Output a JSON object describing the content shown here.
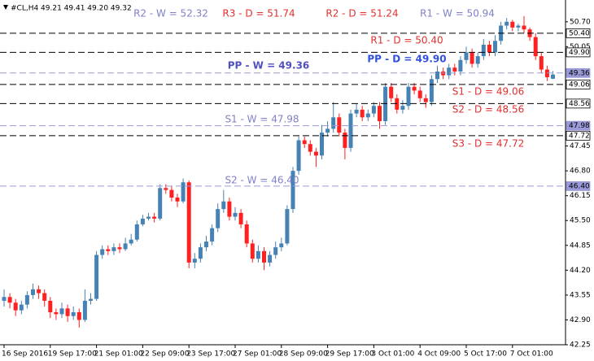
{
  "chart_data": {
    "type": "candlestick",
    "header": "#CL,H4  49.21 49.41 49.20 49.32",
    "up_color": "#4682b4",
    "down_color": "#ff2020",
    "categories": [
      "16 Sep 2016",
      null,
      null,
      null,
      null,
      null,
      null,
      null,
      "19 Sep 17:00",
      null,
      null,
      null,
      null,
      null,
      null,
      null,
      "21 Sep 01:00",
      null,
      null,
      null,
      null,
      null,
      null,
      null,
      "22 Sep 09:00",
      null,
      null,
      null,
      null,
      null,
      null,
      null,
      "23 Sep 17:00",
      null,
      null,
      null,
      null,
      null,
      null,
      null,
      "27 Sep 01:00",
      null,
      null,
      null,
      null,
      null,
      null,
      null,
      "28 Sep 09:00",
      null,
      null,
      null,
      null,
      null,
      null,
      null,
      "29 Sep 17:00",
      null,
      null,
      null,
      null,
      null,
      null,
      null,
      "3 Oct 01:00",
      null,
      null,
      null,
      null,
      null,
      null,
      null,
      "4 Oct 09:00",
      null,
      null,
      null,
      null,
      null,
      null,
      null,
      "5 Oct 17:00",
      null,
      null,
      null,
      null,
      null,
      null,
      null,
      "7 Oct 01:00",
      null,
      null,
      null,
      null,
      null,
      null,
      null
    ],
    "ohlc": [
      [
        43.4,
        43.7,
        43.25,
        43.5
      ],
      [
        43.5,
        43.6,
        43.2,
        43.35
      ],
      [
        43.35,
        43.45,
        43.0,
        43.15
      ],
      [
        43.15,
        43.4,
        43.05,
        43.3
      ],
      [
        43.3,
        43.65,
        43.2,
        43.55
      ],
      [
        43.55,
        43.85,
        43.45,
        43.7
      ],
      [
        43.7,
        43.8,
        43.45,
        43.6
      ],
      [
        43.6,
        43.7,
        43.25,
        43.4
      ],
      [
        43.4,
        43.5,
        42.95,
        43.1
      ],
      [
        43.1,
        43.2,
        42.9,
        43.05
      ],
      [
        43.05,
        43.35,
        42.95,
        43.2
      ],
      [
        43.2,
        43.3,
        42.85,
        43.0
      ],
      [
        43.0,
        43.25,
        42.9,
        43.1
      ],
      [
        43.1,
        43.2,
        42.7,
        42.9
      ],
      [
        42.9,
        43.7,
        42.85,
        43.4
      ],
      [
        43.4,
        43.6,
        43.3,
        43.45
      ],
      [
        43.45,
        44.7,
        43.4,
        44.6
      ],
      [
        44.6,
        44.85,
        44.5,
        44.75
      ],
      [
        44.75,
        44.85,
        44.6,
        44.7
      ],
      [
        44.7,
        44.9,
        44.6,
        44.8
      ],
      [
        44.8,
        44.9,
        44.65,
        44.75
      ],
      [
        44.75,
        45.05,
        44.7,
        44.9
      ],
      [
        44.9,
        45.15,
        44.85,
        45.0
      ],
      [
        45.0,
        45.5,
        44.95,
        45.4
      ],
      [
        45.4,
        45.65,
        45.35,
        45.55
      ],
      [
        45.55,
        45.7,
        45.5,
        45.6
      ],
      [
        45.6,
        45.7,
        45.45,
        45.55
      ],
      [
        45.55,
        46.45,
        45.5,
        46.35
      ],
      [
        46.35,
        46.45,
        46.2,
        46.3
      ],
      [
        46.3,
        46.4,
        46.0,
        46.1
      ],
      [
        46.1,
        46.2,
        45.85,
        46.0
      ],
      [
        46.0,
        46.6,
        45.95,
        46.5
      ],
      [
        46.5,
        46.55,
        44.25,
        44.4
      ],
      [
        44.4,
        44.65,
        44.25,
        44.5
      ],
      [
        44.5,
        44.9,
        44.4,
        44.8
      ],
      [
        44.8,
        45.1,
        44.7,
        44.95
      ],
      [
        44.95,
        45.4,
        44.85,
        45.3
      ],
      [
        45.3,
        45.95,
        45.2,
        45.8
      ],
      [
        45.8,
        46.3,
        45.7,
        46.0
      ],
      [
        46.0,
        46.1,
        45.5,
        45.6
      ],
      [
        45.6,
        45.85,
        45.5,
        45.7
      ],
      [
        45.7,
        45.8,
        45.3,
        45.4
      ],
      [
        45.4,
        45.5,
        44.8,
        44.9
      ],
      [
        44.9,
        45.0,
        44.4,
        44.5
      ],
      [
        44.5,
        44.85,
        44.4,
        44.7
      ],
      [
        44.7,
        44.8,
        44.2,
        44.4
      ],
      [
        44.4,
        44.7,
        44.3,
        44.6
      ],
      [
        44.6,
        44.95,
        44.5,
        44.8
      ],
      [
        44.8,
        45.05,
        44.7,
        44.9
      ],
      [
        44.9,
        45.9,
        44.85,
        45.8
      ],
      [
        45.8,
        46.9,
        45.7,
        46.8
      ],
      [
        46.8,
        47.7,
        46.7,
        47.6
      ],
      [
        47.6,
        47.7,
        47.4,
        47.5
      ],
      [
        47.5,
        47.6,
        47.2,
        47.3
      ],
      [
        47.3,
        47.4,
        46.9,
        47.2
      ],
      [
        47.2,
        48.0,
        47.1,
        47.8
      ],
      [
        47.8,
        48.1,
        47.7,
        47.9
      ],
      [
        47.9,
        48.6,
        47.8,
        48.2
      ],
      [
        48.2,
        48.3,
        47.7,
        47.8
      ],
      [
        47.8,
        47.9,
        47.1,
        47.4
      ],
      [
        47.4,
        48.4,
        47.3,
        48.3
      ],
      [
        48.3,
        48.55,
        48.2,
        48.4
      ],
      [
        48.4,
        48.5,
        48.1,
        48.2
      ],
      [
        48.2,
        48.4,
        48.1,
        48.3
      ],
      [
        48.3,
        48.6,
        48.2,
        48.5
      ],
      [
        48.5,
        48.6,
        47.9,
        48.1
      ],
      [
        48.1,
        49.1,
        48.0,
        49.0
      ],
      [
        49.0,
        49.1,
        48.6,
        48.7
      ],
      [
        48.7,
        48.8,
        48.3,
        48.4
      ],
      [
        48.4,
        48.65,
        48.3,
        48.5
      ],
      [
        48.5,
        49.1,
        48.4,
        49.0
      ],
      [
        49.0,
        49.1,
        48.8,
        48.9
      ],
      [
        48.9,
        49.0,
        48.6,
        48.7
      ],
      [
        48.7,
        48.8,
        48.45,
        48.6
      ],
      [
        48.6,
        49.3,
        48.5,
        49.2
      ],
      [
        49.2,
        49.55,
        49.1,
        49.4
      ],
      [
        49.4,
        49.5,
        49.2,
        49.3
      ],
      [
        49.3,
        49.6,
        49.2,
        49.5
      ],
      [
        49.5,
        49.6,
        49.3,
        49.4
      ],
      [
        49.4,
        49.8,
        49.3,
        49.7
      ],
      [
        49.7,
        50.05,
        49.6,
        49.9
      ],
      [
        49.9,
        50.0,
        49.5,
        49.6
      ],
      [
        49.6,
        49.9,
        49.5,
        49.8
      ],
      [
        49.8,
        50.25,
        49.7,
        50.1
      ],
      [
        50.1,
        50.2,
        49.8,
        49.9
      ],
      [
        49.9,
        50.35,
        49.8,
        50.2
      ],
      [
        50.2,
        50.7,
        50.1,
        50.6
      ],
      [
        50.6,
        50.8,
        50.5,
        50.7
      ],
      [
        50.7,
        50.75,
        50.45,
        50.55
      ],
      [
        50.55,
        50.65,
        50.45,
        50.6
      ],
      [
        50.6,
        50.85,
        50.4,
        50.5
      ],
      [
        50.5,
        50.55,
        50.2,
        50.3
      ],
      [
        50.3,
        50.4,
        49.7,
        49.8
      ],
      [
        49.8,
        49.9,
        49.35,
        49.45
      ],
      [
        49.45,
        49.55,
        49.15,
        49.25
      ],
      [
        49.21,
        49.41,
        49.2,
        49.32
      ]
    ],
    "ylim": [
      42.25,
      51.27
    ],
    "yticks": [
      {
        "value": 42.25,
        "label": "42.25"
      },
      {
        "value": 42.9,
        "label": "42.90"
      },
      {
        "value": 43.55,
        "label": "43.55"
      },
      {
        "value": 44.2,
        "label": "44.20"
      },
      {
        "value": 44.85,
        "label": "44.85"
      },
      {
        "value": 45.5,
        "label": "45.50"
      },
      {
        "value": 46.15,
        "label": "46.15"
      },
      {
        "value": 46.8,
        "label": "46.80"
      },
      {
        "value": 47.45,
        "label": "47.45"
      },
      {
        "value": 50.05,
        "label": "50.05"
      },
      {
        "value": 50.7,
        "label": "50.70"
      }
    ],
    "levels": [
      {
        "label": "R2 - W = 52.32",
        "value": 52.32,
        "color": "#8080c8"
      },
      {
        "label": "R3 - D = 51.74",
        "value": 51.74,
        "color": "#e03030"
      },
      {
        "label": "R2 - D = 51.24",
        "value": 51.24,
        "color": "#e03030"
      },
      {
        "label": "R1 - W = 50.94",
        "value": 50.94,
        "color": "#8080c8"
      },
      {
        "label": "R1 - D = 50.40",
        "value": 50.4,
        "color": "#e03030",
        "line_color": "#000000",
        "tag": "50.40"
      },
      {
        "label": "PP - D = 49.90",
        "value": 49.9,
        "color": "#3050e0",
        "line_color": "#000000",
        "tag": "49.90"
      },
      {
        "label": "PP - W = 49.36",
        "value": 49.36,
        "color": "#5050c0",
        "line_color": "#9a9ad8",
        "tag": "49.36"
      },
      {
        "label": "S1 - D = 49.06",
        "value": 49.06,
        "color": "#e03030",
        "line_color": "#000000",
        "tag": "49.06"
      },
      {
        "label": "S2 - D = 48.56",
        "value": 48.56,
        "color": "#e03030",
        "line_color": "#000000",
        "tag": "48.56"
      },
      {
        "label": "S1 - W = 47.98",
        "value": 47.98,
        "color": "#8080c8",
        "line_color": "#9a9ad8",
        "tag": "47.98"
      },
      {
        "label": "S3 - D = 47.72",
        "value": 47.72,
        "color": "#e03030",
        "line_color": "#000000",
        "tag": "47.72"
      },
      {
        "label": "S2 - W = 46.40",
        "value": 46.4,
        "color": "#8080c8",
        "line_color": "#9a9ad8",
        "tag": "46.40"
      }
    ]
  }
}
